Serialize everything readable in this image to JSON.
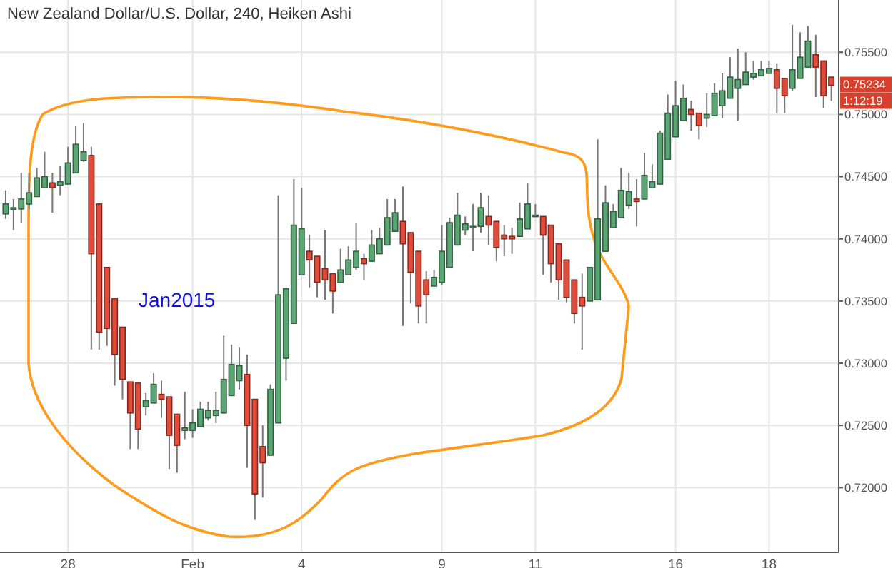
{
  "chart_data": {
    "type": "candlestick",
    "title": "New Zealand Dollar/U.S. Dollar, 240, Heiken Ashi",
    "categories": [
      null,
      null,
      null,
      null,
      null,
      null,
      null,
      null,
      "28",
      null,
      null,
      null,
      null,
      null,
      null,
      null,
      null,
      null,
      null,
      null,
      null,
      null,
      null,
      null,
      "Feb",
      null,
      null,
      null,
      null,
      null,
      null,
      null,
      null,
      null,
      null,
      null,
      null,
      null,
      "4",
      null,
      null,
      null,
      null,
      null,
      null,
      null,
      null,
      null,
      null,
      null,
      null,
      null,
      null,
      null,
      null,
      null,
      "9",
      null,
      null,
      null,
      null,
      null,
      null,
      null,
      null,
      null,
      null,
      null,
      "11",
      null,
      null,
      null,
      null,
      null,
      null,
      null,
      null,
      null,
      null,
      null,
      null,
      null,
      null,
      null,
      null,
      null,
      "16",
      null,
      null,
      null,
      null,
      null,
      null,
      null,
      null,
      null,
      null,
      null,
      "18",
      null,
      null,
      null,
      null,
      null,
      null,
      null,
      null
    ],
    "ohlc": [
      [
        0.742,
        0.7439,
        0.7416,
        0.7428
      ],
      [
        0.7425,
        0.7432,
        0.7407,
        0.7425
      ],
      [
        0.7424,
        0.7453,
        0.7413,
        0.7432
      ],
      [
        0.7428,
        0.7453,
        0.7424,
        0.7437
      ],
      [
        0.7434,
        0.7457,
        0.7434,
        0.7449
      ],
      [
        0.7441,
        0.747,
        0.7441,
        0.745
      ],
      [
        0.7445,
        0.7453,
        0.7421,
        0.7441
      ],
      [
        0.7443,
        0.7459,
        0.7435,
        0.7446
      ],
      [
        0.7444,
        0.7474,
        0.7444,
        0.7461
      ],
      [
        0.7453,
        0.7491,
        0.7453,
        0.7476
      ],
      [
        0.7463,
        0.7493,
        0.7462,
        0.747
      ],
      [
        0.7467,
        0.7474,
        0.7311,
        0.7388
      ],
      [
        0.7428,
        0.7428,
        0.7311,
        0.7325
      ],
      [
        0.7377,
        0.7377,
        0.7314,
        0.7328
      ],
      [
        0.7352,
        0.7352,
        0.7282,
        0.7307
      ],
      [
        0.7329,
        0.7329,
        0.7271,
        0.7287
      ],
      [
        0.7285,
        0.7285,
        0.7231,
        0.726
      ],
      [
        0.7284,
        0.7284,
        0.7231,
        0.7247
      ],
      [
        0.7265,
        0.7276,
        0.7258,
        0.727
      ],
      [
        0.7268,
        0.7292,
        0.7268,
        0.7283
      ],
      [
        0.7275,
        0.7286,
        0.7256,
        0.7271
      ],
      [
        0.7273,
        0.7273,
        0.7215,
        0.7242
      ],
      [
        0.7259,
        0.7259,
        0.7212,
        0.7234
      ],
      [
        0.7246,
        0.7277,
        0.7239,
        0.7248
      ],
      [
        0.7246,
        0.7263,
        0.724,
        0.7252
      ],
      [
        0.7249,
        0.7269,
        0.7249,
        0.7263
      ],
      [
        0.7256,
        0.7269,
        0.7254,
        0.7262
      ],
      [
        0.7258,
        0.7277,
        0.7252,
        0.7262
      ],
      [
        0.726,
        0.7322,
        0.726,
        0.7287
      ],
      [
        0.7274,
        0.7315,
        0.7274,
        0.7299
      ],
      [
        0.7286,
        0.7313,
        0.7279,
        0.7298
      ],
      [
        0.7291,
        0.7307,
        0.7216,
        0.725
      ],
      [
        0.7271,
        0.7271,
        0.7174,
        0.7195
      ],
      [
        0.7233,
        0.725,
        0.7192,
        0.722
      ],
      [
        0.7226,
        0.7283,
        0.7226,
        0.7279
      ],
      [
        0.7252,
        0.7435,
        0.7252,
        0.7355
      ],
      [
        0.7304,
        0.736,
        0.7286,
        0.736
      ],
      [
        0.7332,
        0.7448,
        0.7332,
        0.7411
      ],
      [
        0.7371,
        0.7441,
        0.7371,
        0.7408
      ],
      [
        0.739,
        0.7403,
        0.7361,
        0.7383
      ],
      [
        0.7386,
        0.7386,
        0.7353,
        0.7365
      ],
      [
        0.7376,
        0.7407,
        0.7351,
        0.7367
      ],
      [
        0.7372,
        0.7372,
        0.734,
        0.7358
      ],
      [
        0.7365,
        0.7392,
        0.7365,
        0.7375
      ],
      [
        0.7371,
        0.7394,
        0.7371,
        0.7383
      ],
      [
        0.7377,
        0.7413,
        0.7375,
        0.739
      ],
      [
        0.7384,
        0.7388,
        0.7367,
        0.738
      ],
      [
        0.7382,
        0.7407,
        0.7382,
        0.7395
      ],
      [
        0.7388,
        0.7409,
        0.7388,
        0.74
      ],
      [
        0.7395,
        0.7432,
        0.7395,
        0.7417
      ],
      [
        0.7406,
        0.7432,
        0.7406,
        0.7421
      ],
      [
        0.7414,
        0.7442,
        0.733,
        0.7396
      ],
      [
        0.7405,
        0.7405,
        0.7348,
        0.7373
      ],
      [
        0.739,
        0.739,
        0.7332,
        0.7346
      ],
      [
        0.7367,
        0.7374,
        0.7332,
        0.7355
      ],
      [
        0.7362,
        0.7375,
        0.7362,
        0.7369
      ],
      [
        0.7365,
        0.7411,
        0.7363,
        0.739
      ],
      [
        0.7377,
        0.7417,
        0.7377,
        0.7413
      ],
      [
        0.7395,
        0.7437,
        0.7395,
        0.7419
      ],
      [
        0.7407,
        0.7418,
        0.7403,
        0.7412
      ],
      [
        0.741,
        0.7428,
        0.739,
        0.741
      ],
      [
        0.741,
        0.7437,
        0.7405,
        0.7425
      ],
      [
        0.7418,
        0.7435,
        0.7395,
        0.7411
      ],
      [
        0.7414,
        0.7414,
        0.7382,
        0.7393
      ],
      [
        0.7403,
        0.7411,
        0.7386,
        0.74
      ],
      [
        0.7402,
        0.7409,
        0.7388,
        0.74
      ],
      [
        0.7402,
        0.7429,
        0.7402,
        0.7416
      ],
      [
        0.7408,
        0.7445,
        0.7408,
        0.7428
      ],
      [
        0.7418,
        0.7428,
        0.7418,
        0.7419
      ],
      [
        0.7418,
        0.7418,
        0.7371,
        0.7403
      ],
      [
        0.7411,
        0.7411,
        0.7365,
        0.738
      ],
      [
        0.7396,
        0.7396,
        0.7351,
        0.7367
      ],
      [
        0.7383,
        0.7383,
        0.7349,
        0.7353
      ],
      [
        0.7367,
        0.7367,
        0.7332,
        0.734
      ],
      [
        0.7353,
        0.7372,
        0.7311,
        0.7346
      ],
      [
        0.735,
        0.7377,
        0.735,
        0.7377
      ],
      [
        0.7351,
        0.748,
        0.7351,
        0.7416
      ],
      [
        0.739,
        0.7443,
        0.739,
        0.7429
      ],
      [
        0.7409,
        0.7428,
        0.7409,
        0.7422
      ],
      [
        0.7417,
        0.7457,
        0.7417,
        0.7439
      ],
      [
        0.7427,
        0.7453,
        0.7424,
        0.7438
      ],
      [
        0.7432,
        0.7448,
        0.741,
        0.743
      ],
      [
        0.7432,
        0.7469,
        0.7432,
        0.7451
      ],
      [
        0.7441,
        0.746,
        0.7441,
        0.7446
      ],
      [
        0.7444,
        0.7487,
        0.7444,
        0.7485
      ],
      [
        0.7464,
        0.7516,
        0.7464,
        0.7501
      ],
      [
        0.7482,
        0.7527,
        0.7482,
        0.7507
      ],
      [
        0.7495,
        0.7524,
        0.7495,
        0.7513
      ],
      [
        0.7504,
        0.7511,
        0.7487,
        0.75
      ],
      [
        0.7501,
        0.7501,
        0.748,
        0.7491
      ],
      [
        0.7497,
        0.7517,
        0.749,
        0.75
      ],
      [
        0.7499,
        0.7525,
        0.7499,
        0.7517
      ],
      [
        0.7507,
        0.7533,
        0.7497,
        0.7519
      ],
      [
        0.7513,
        0.7546,
        0.7513,
        0.753
      ],
      [
        0.7521,
        0.7553,
        0.7495,
        0.7528
      ],
      [
        0.7524,
        0.755,
        0.7524,
        0.7534
      ],
      [
        0.753,
        0.7543,
        0.7528,
        0.7533
      ],
      [
        0.7531,
        0.7543,
        0.7531,
        0.7536
      ],
      [
        0.7533,
        0.7543,
        0.7533,
        0.7537
      ],
      [
        0.7536,
        0.7541,
        0.7501,
        0.7521
      ],
      [
        0.7529,
        0.7529,
        0.7501,
        0.7515
      ],
      [
        0.7521,
        0.7572,
        0.7519,
        0.7536
      ],
      [
        0.7529,
        0.7566,
        0.7529,
        0.7546
      ],
      [
        0.7538,
        0.7571,
        0.7538,
        0.7559
      ],
      [
        0.7548,
        0.7564,
        0.7514,
        0.7538
      ],
      [
        0.7543,
        0.7543,
        0.7505,
        0.7515
      ],
      [
        0.753,
        0.753,
        0.7511,
        0.75234
      ]
    ],
    "colors": [
      "#5aa774",
      "#5aa774",
      "#5aa774",
      "#5aa774",
      "#5aa774",
      "#5aa774",
      "#e04b3a",
      "#5aa774",
      "#5aa774",
      "#5aa774",
      "#5aa774",
      "#e04b3a",
      "#e04b3a",
      "#e04b3a",
      "#e04b3a",
      "#e04b3a",
      "#e04b3a",
      "#e04b3a",
      "#5aa774",
      "#5aa774",
      "#e04b3a",
      "#e04b3a",
      "#e04b3a",
      "#5aa774",
      "#5aa774",
      "#5aa774",
      "#5aa774",
      "#5aa774",
      "#5aa774",
      "#5aa774",
      "#5aa774",
      "#e04b3a",
      "#e04b3a",
      "#e04b3a",
      "#5aa774",
      "#5aa774",
      "#5aa774",
      "#5aa774",
      "#5aa774",
      "#e04b3a",
      "#e04b3a",
      "#e04b3a",
      "#e04b3a",
      "#5aa774",
      "#5aa774",
      "#5aa774",
      "#e04b3a",
      "#5aa774",
      "#5aa774",
      "#5aa774",
      "#5aa774",
      "#e04b3a",
      "#e04b3a",
      "#e04b3a",
      "#e04b3a",
      "#5aa774",
      "#5aa774",
      "#5aa774",
      "#5aa774",
      "#5aa774",
      "#5aa774",
      "#5aa774",
      "#e04b3a",
      "#e04b3a",
      "#e04b3a",
      "#e04b3a",
      "#5aa774",
      "#5aa774",
      "#5aa774",
      "#e04b3a",
      "#e04b3a",
      "#e04b3a",
      "#e04b3a",
      "#e04b3a",
      "#e04b3a",
      "#5aa774",
      "#5aa774",
      "#5aa774",
      "#5aa774",
      "#5aa774",
      "#5aa774",
      "#e04b3a",
      "#5aa774",
      "#5aa774",
      "#5aa774",
      "#5aa774",
      "#5aa774",
      "#5aa774",
      "#e04b3a",
      "#e04b3a",
      "#5aa774",
      "#5aa774",
      "#5aa774",
      "#5aa774",
      "#5aa774",
      "#5aa774",
      "#5aa774",
      "#5aa774",
      "#5aa774",
      "#e04b3a",
      "#e04b3a",
      "#5aa774",
      "#5aa774",
      "#5aa774",
      "#e04b3a",
      "#e04b3a",
      "#e04b3a"
    ],
    "ylim": [
      0.7148,
      0.7592
    ],
    "yticks": [
      {
        "value": 0.72,
        "label": "0.72000"
      },
      {
        "value": 0.725,
        "label": "0.72500"
      },
      {
        "value": 0.73,
        "label": "0.73000"
      },
      {
        "value": 0.735,
        "label": "0.73500"
      },
      {
        "value": 0.74,
        "label": "0.74000"
      },
      {
        "value": 0.745,
        "label": "0.74500"
      },
      {
        "value": 0.75,
        "label": "0.75000"
      },
      {
        "value": 0.755,
        "label": "0.75500"
      }
    ],
    "grid": true,
    "annotations": [
      "Jan2015",
      "0.75234",
      "1:12:19"
    ]
  }
}
